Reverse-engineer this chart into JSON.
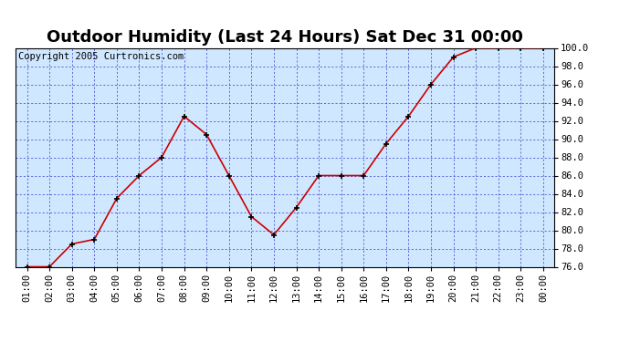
{
  "title": "Outdoor Humidity (Last 24 Hours) Sat Dec 31 00:00",
  "copyright": "Copyright 2005 Curtronics.com",
  "x_labels": [
    "01:00",
    "02:00",
    "03:00",
    "04:00",
    "05:00",
    "06:00",
    "07:00",
    "08:00",
    "09:00",
    "10:00",
    "11:00",
    "12:00",
    "13:00",
    "14:00",
    "15:00",
    "16:00",
    "17:00",
    "18:00",
    "19:00",
    "20:00",
    "21:00",
    "22:00",
    "23:00",
    "00:00"
  ],
  "y_values": [
    76.0,
    76.0,
    78.5,
    79.0,
    83.5,
    86.0,
    88.0,
    92.5,
    90.5,
    86.0,
    81.5,
    79.5,
    82.5,
    86.0,
    86.0,
    86.0,
    89.5,
    92.5,
    96.0,
    99.0,
    100.0,
    100.0,
    100.0,
    100.0
  ],
  "ylim_min": 76.0,
  "ylim_max": 100.0,
  "ytick_values": [
    76.0,
    78.0,
    80.0,
    82.0,
    84.0,
    86.0,
    88.0,
    90.0,
    92.0,
    94.0,
    96.0,
    98.0,
    100.0
  ],
  "ytick_labels": [
    "76.0",
    "78.0",
    "80.0",
    "82.0",
    "84.0",
    "86.0",
    "88.0",
    "90.0",
    "92.0",
    "94.0",
    "96.0",
    "98.0",
    "100.0"
  ],
  "line_color": "#cc0000",
  "marker_color": "#000000",
  "plot_bg_color": "#d0e8ff",
  "grid_color": "#3333cc",
  "border_color": "#000000",
  "title_fontsize": 13,
  "copyright_fontsize": 7.5,
  "tick_fontsize": 7.5
}
